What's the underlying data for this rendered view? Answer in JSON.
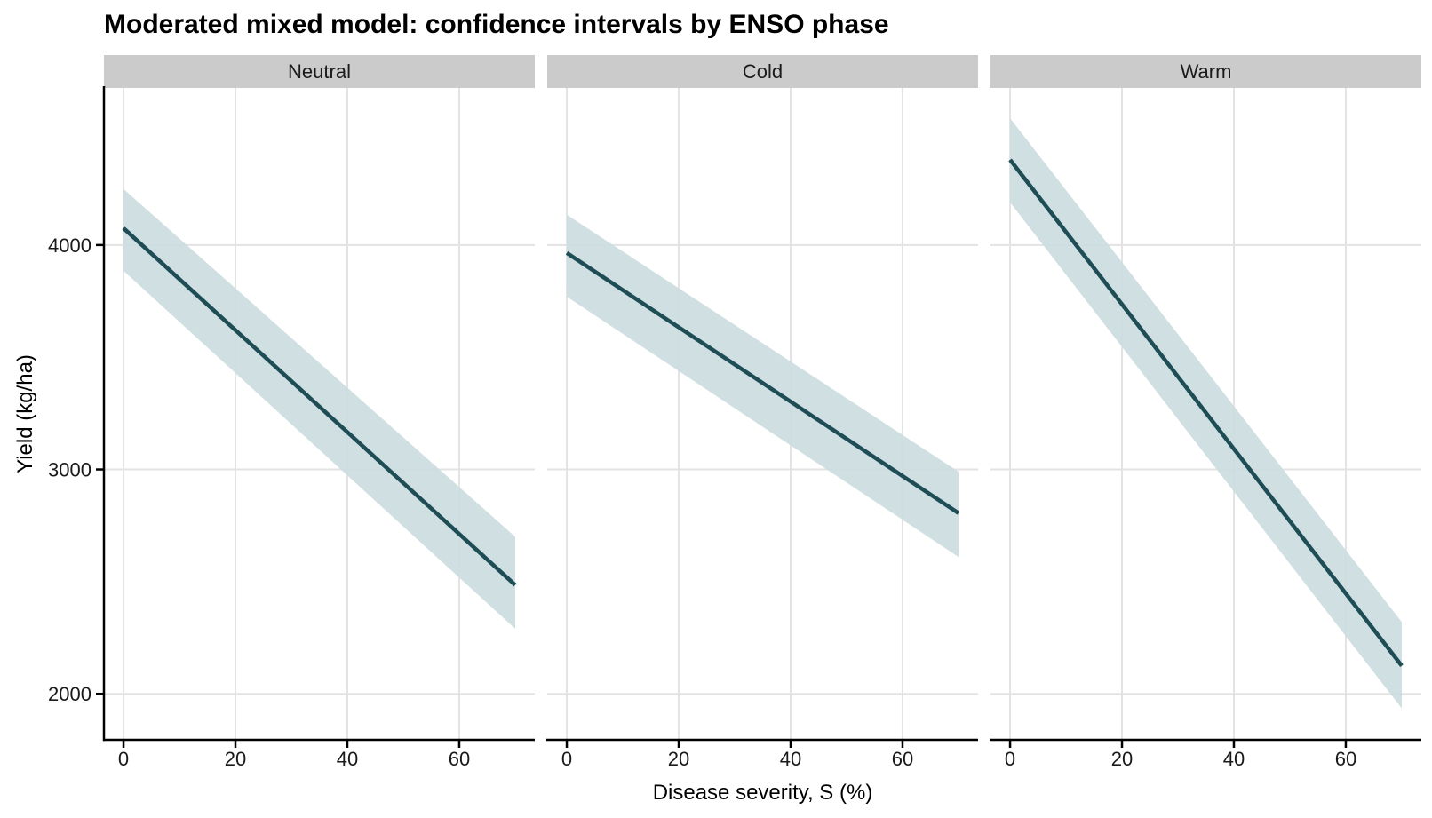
{
  "chart_data": {
    "type": "line",
    "title": "Moderated mixed model: confidence intervals by ENSO phase",
    "xlabel": "Disease severity, S (%)",
    "ylabel": "Yield (kg/ha)",
    "facet_variable": "ENSO phase",
    "x_ticks": [
      0,
      20,
      40,
      60
    ],
    "y_ticks": [
      2000,
      3000,
      4000
    ],
    "xlim": [
      -3.5,
      73.5
    ],
    "ylim": [
      1795,
      4700
    ],
    "grid": "major-only",
    "legend_position": "none",
    "x": [
      0,
      70
    ],
    "facets": [
      {
        "label": "Neutral",
        "mean": [
          4075,
          2485
        ],
        "ci_upper": [
          4250,
          2700
        ],
        "ci_lower": [
          3885,
          2290
        ]
      },
      {
        "label": "Cold",
        "mean": [
          3965,
          2805
        ],
        "ci_upper": [
          4135,
          2990
        ],
        "ci_lower": [
          3770,
          2610
        ]
      },
      {
        "label": "Warm",
        "mean": [
          4380,
          2125
        ],
        "ci_upper": [
          4565,
          2320
        ],
        "ci_lower": [
          4190,
          1935
        ]
      }
    ],
    "colors": {
      "line": "#1e4d56",
      "ribbon": "#ccdce0",
      "grid": "#e3e3e3",
      "axis": "#000000",
      "strip_background": "#cbcbcb",
      "tick_label": "#1a1a1a",
      "panel_background": "#ffffff"
    }
  }
}
